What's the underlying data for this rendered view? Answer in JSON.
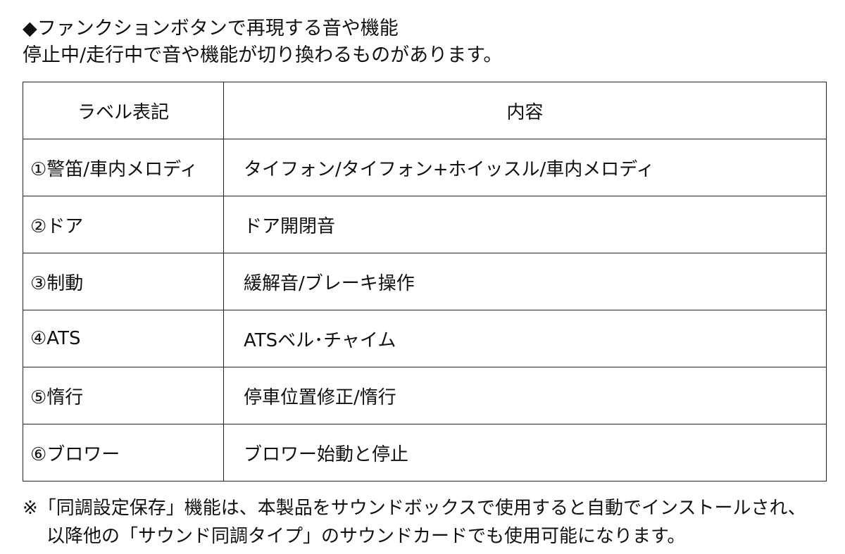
{
  "header": {
    "lines": [
      "◆ファンクションボタンで再現する音や機能",
      "停止中/走行中で音や機能が切り換わるものがあります。"
    ]
  },
  "table": {
    "columns": [
      "ラベル表記",
      "内容"
    ],
    "rows": [
      [
        "①警笛/車内メロディ",
        "タイフォン/タイフォン+ホイッスル/車内メロディ"
      ],
      [
        "②ドア",
        "ドア開閉音"
      ],
      [
        "③制動",
        "緩解音/ブレーキ操作"
      ],
      [
        "④ATS",
        "ATSベル･チャイム"
      ],
      [
        "⑤惰行",
        "停車位置修正/惰行"
      ],
      [
        "⑥ブロワー",
        "ブロワー始動と停止"
      ]
    ]
  },
  "footer": {
    "lines": [
      "※「同調設定保存」機能は、本製品をサウンドボックスで使用すると自動でインストールされ、",
      "以降他の「サウンド同調タイプ」のサウンドカードでも使用可能になります。"
    ]
  }
}
